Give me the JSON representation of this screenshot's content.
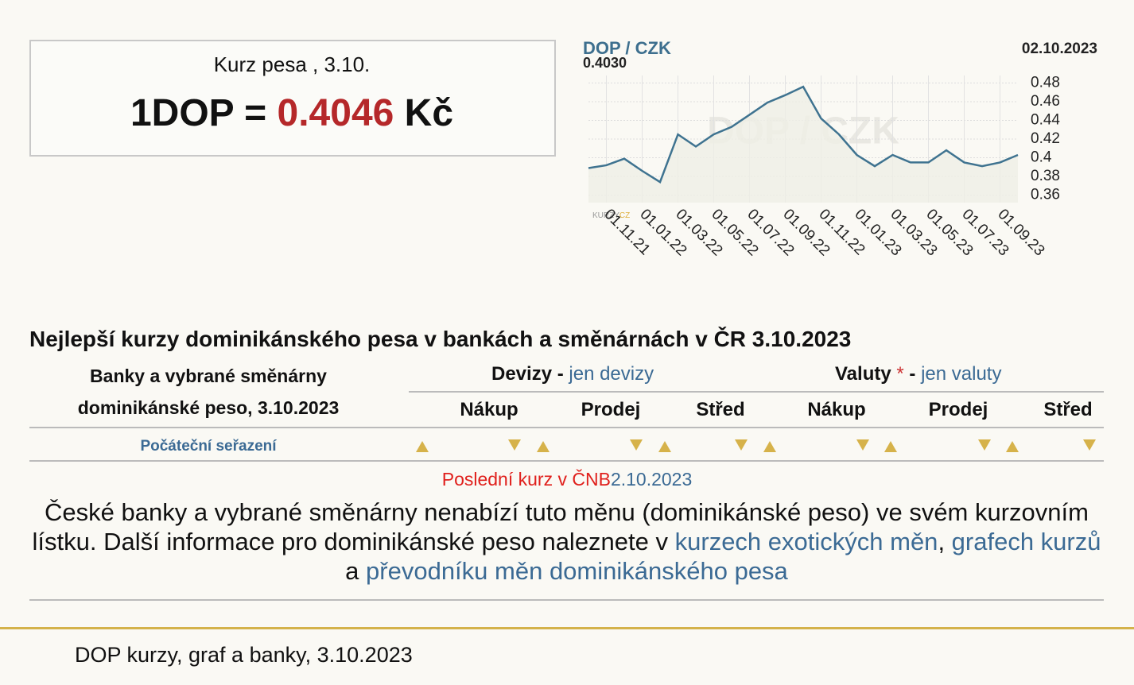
{
  "header": {
    "title": "Kurz pesa  , 3.10.",
    "rate_left": "1DOP =",
    "rate_value": "0.4046",
    "rate_unit": "Kč"
  },
  "chart_data": {
    "type": "line",
    "title": "DOP / CZK",
    "current_value": "0.4030",
    "date": "02.10.2023",
    "logo_a": "KURZY",
    "logo_b": "CZ",
    "x": [
      "01.10.21",
      "01.11.21",
      "01.12.21",
      "01.01.22",
      "01.02.22",
      "01.03.22",
      "01.04.22",
      "01.05.22",
      "01.06.22",
      "01.07.22",
      "01.08.22",
      "01.09.22",
      "01.10.22",
      "01.11.22",
      "01.12.22",
      "01.01.23",
      "01.02.23",
      "01.03.23",
      "01.04.23",
      "01.05.23",
      "01.06.23",
      "01.07.23",
      "01.08.23",
      "01.09.23",
      "01.10.23"
    ],
    "series": [
      {
        "name": "DOP / CZK",
        "color": "#3f7390",
        "values": [
          0.389,
          0.392,
          0.399,
          0.386,
          0.374,
          0.425,
          0.412,
          0.425,
          0.433,
          0.446,
          0.459,
          0.467,
          0.476,
          0.442,
          0.425,
          0.403,
          0.391,
          0.403,
          0.395,
          0.395,
          0.408,
          0.395,
          0.391,
          0.395,
          0.403
        ]
      }
    ],
    "xticks": [
      "01.11.21",
      "01.01.22",
      "01.03.22",
      "01.05.22",
      "01.07.22",
      "01.09.22",
      "01.11.22",
      "01.01.23",
      "01.03.23",
      "01.05.23",
      "01.07.23",
      "01.09.23"
    ],
    "ylim": [
      0.352,
      0.488
    ],
    "yticks": [
      0.36,
      0.38,
      0.4,
      0.42,
      0.44,
      0.46,
      0.48
    ],
    "grid": true
  },
  "section": {
    "title": "Nejlepší kurzy dominikánského pesa v bankách a směnárnách v ČR 3.10.2023",
    "left_header_1": "Banky a vybrané směnárny",
    "left_header_2": "dominikánské peso, 3.10.2023",
    "devizy": "Devizy",
    "devizy_sep": "-",
    "devizy_link": "jen devizy",
    "valuty": "Valuty",
    "valuty_star": "*",
    "valuty_sep": "-",
    "valuty_link": "jen valuty",
    "columns": [
      "Nákup",
      "Prodej",
      "Střed",
      "Nákup",
      "Prodej",
      "Střed"
    ],
    "sort_label": "Počáteční seřazení",
    "notice": "Poslední kurz v ČNB",
    "notice_date": "2.10.2023",
    "paragraph": {
      "text1": "České banky a vybrané směnárny nenabízí tuto měnu (dominikánské peso) ve svém kurzovním lístku. Další informace pro dominikánské peso naleznete v ",
      "link1": "kurzech exotických měn",
      "sep1": ", ",
      "link2": "grafech kurzů",
      "sep2": " a ",
      "link3": "převodníku měn dominikánského pesa"
    }
  },
  "footer": {
    "text": "DOP kurzy, graf a banky, 3.10.2023"
  }
}
